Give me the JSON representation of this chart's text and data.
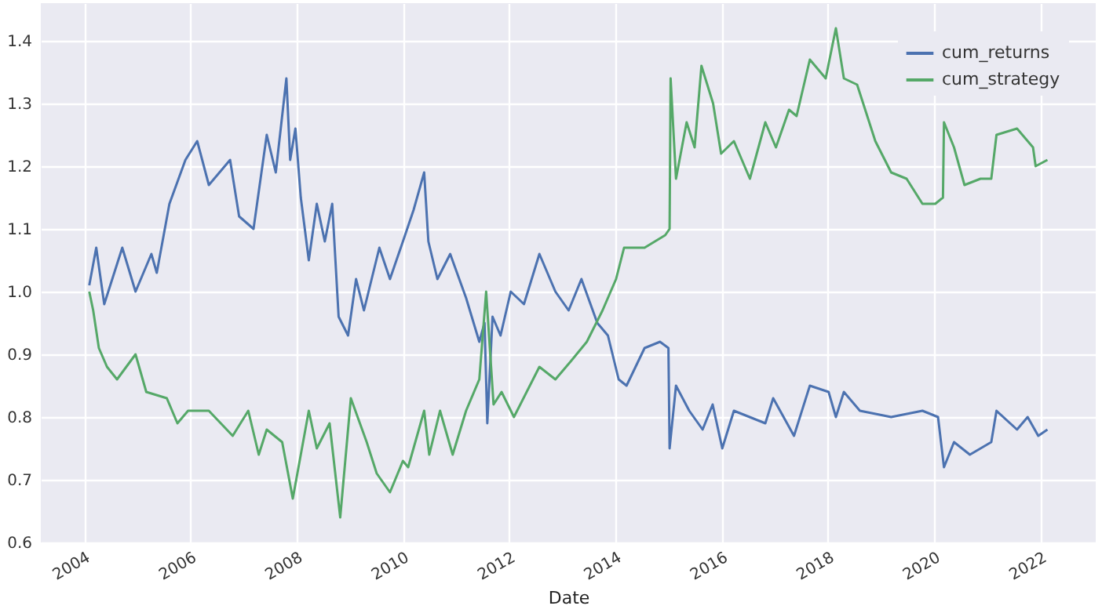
{
  "chart_data": {
    "type": "line",
    "xlabel": "Date",
    "xlim": [
      "2003-03-10",
      "2023-01-15"
    ],
    "xticks": [
      "2004",
      "2006",
      "2008",
      "2010",
      "2012",
      "2014",
      "2016",
      "2018",
      "2020",
      "2022"
    ],
    "ylim": [
      0.6,
      1.46
    ],
    "yticks": [
      0.6,
      0.7,
      0.8,
      0.9,
      {
        "value": 1.0,
        "label": "1.0"
      },
      1.1,
      1.2,
      1.3,
      1.4
    ],
    "grid": true,
    "legend": "top right",
    "marker": "none",
    "line_style": "solid",
    "series": [
      {
        "name": "cum_returns",
        "color": "#4c72b0",
        "x": [
          "2004-02-06",
          "2004-03-25",
          "2004-05-19",
          "2004-09-20",
          "2004-12-20",
          "2005-04-08",
          "2005-05-15",
          "2005-08-10",
          "2005-11-28",
          "2006-02-17",
          "2006-05-08",
          "2006-10-01",
          "2006-12-02",
          "2007-03-11",
          "2007-06-10",
          "2007-08-11",
          "2007-10-23",
          "2007-11-18",
          "2007-12-24",
          "2008-01-30",
          "2008-03-25",
          "2008-05-19",
          "2008-07-13",
          "2008-09-02",
          "2008-10-16",
          "2008-12-20",
          "2009-02-13",
          "2009-04-08",
          "2009-07-23",
          "2009-10-04",
          "2010-01-01",
          "2010-03-15",
          "2010-05-27",
          "2010-06-25",
          "2010-08-26",
          "2010-11-22",
          "2011-03-11",
          "2011-06-10",
          "2011-07-16",
          "2011-08-04",
          "2011-09-09",
          "2011-11-03",
          "2012-01-12",
          "2012-04-12",
          "2012-07-27",
          "2012-11-14",
          "2013-02-13",
          "2013-05-12",
          "2013-08-29",
          "2013-11-10",
          "2014-01-23",
          "2014-03-18",
          "2014-07-20",
          "2014-11-03",
          "2014-12-31",
          "2015-01-08",
          "2015-02-21",
          "2015-05-23",
          "2015-08-23",
          "2015-10-31",
          "2016-01-05",
          "2016-03-25",
          "2016-10-27",
          "2016-12-20",
          "2017-05-12",
          "2017-08-29",
          "2018-01-05",
          "2018-02-24",
          "2018-04-20",
          "2018-08-08",
          "2019-03-11",
          "2019-10-12",
          "2020-01-27",
          "2020-03-08",
          "2020-05-16",
          "2020-09-02",
          "2021-01-27",
          "2021-03-04",
          "2021-07-23",
          "2021-10-04",
          "2021-12-16",
          "2022-02-17"
        ],
        "values": [
          1.01,
          1.07,
          0.98,
          1.07,
          1.0,
          1.06,
          1.03,
          1.14,
          1.21,
          1.24,
          1.17,
          1.21,
          1.12,
          1.1,
          1.25,
          1.19,
          1.34,
          1.21,
          1.26,
          1.15,
          1.05,
          1.14,
          1.08,
          1.14,
          0.96,
          0.93,
          1.02,
          0.97,
          1.07,
          1.02,
          1.08,
          1.13,
          1.19,
          1.08,
          1.02,
          1.06,
          0.99,
          0.92,
          0.95,
          0.79,
          0.96,
          0.93,
          1.0,
          0.98,
          1.06,
          1.0,
          0.97,
          1.02,
          0.95,
          0.93,
          0.86,
          0.85,
          0.91,
          0.92,
          0.91,
          0.75,
          0.85,
          0.81,
          0.78,
          0.82,
          0.75,
          0.81,
          0.79,
          0.83,
          0.77,
          0.85,
          0.84,
          0.8,
          0.84,
          0.81,
          0.8,
          0.81,
          0.8,
          0.72,
          0.76,
          0.74,
          0.76,
          0.81,
          0.78,
          0.8,
          0.77,
          0.78
        ]
      },
      {
        "name": "cum_strategy",
        "color": "#55a868",
        "x": [
          "2004-02-06",
          "2004-03-04",
          "2004-04-12",
          "2004-06-07",
          "2004-08-15",
          "2004-12-20",
          "2005-03-04",
          "2005-07-23",
          "2005-10-04",
          "2005-12-16",
          "2006-05-08",
          "2006-10-19",
          "2007-02-03",
          "2007-04-16",
          "2007-06-10",
          "2007-09-24",
          "2007-12-06",
          "2008-01-30",
          "2008-03-25",
          "2008-05-19",
          "2008-08-15",
          "2008-10-27",
          "2009-01-08",
          "2009-04-27",
          "2009-07-05",
          "2009-10-04",
          "2010-01-01",
          "2010-02-06",
          "2010-05-27",
          "2010-07-01",
          "2010-09-13",
          "2010-12-09",
          "2011-03-11",
          "2011-06-10",
          "2011-07-27",
          "2011-09-16",
          "2011-11-10",
          "2012-02-03",
          "2012-07-27",
          "2012-11-14",
          "2013-03-04",
          "2013-06-18",
          "2013-10-04",
          "2014-01-05",
          "2014-03-01",
          "2014-07-20",
          "2014-12-09",
          "2015-01-08",
          "2015-01-15",
          "2015-02-21",
          "2015-05-05",
          "2015-06-29",
          "2015-08-15",
          "2015-11-03",
          "2015-12-28",
          "2016-03-25",
          "2016-07-13",
          "2016-10-27",
          "2017-01-08",
          "2017-04-08",
          "2017-05-30",
          "2017-08-29",
          "2017-12-16",
          "2018-02-24",
          "2018-04-20",
          "2018-07-20",
          "2018-11-22",
          "2019-03-11",
          "2019-06-25",
          "2019-10-12",
          "2020-01-08",
          "2020-03-01",
          "2020-03-08",
          "2020-05-16",
          "2020-07-27",
          "2020-11-14",
          "2021-01-27",
          "2021-03-04",
          "2021-07-23",
          "2021-11-10",
          "2021-11-28",
          "2022-02-17"
        ],
        "values": [
          1.0,
          0.97,
          0.91,
          0.88,
          0.86,
          0.9,
          0.84,
          0.83,
          0.79,
          0.81,
          0.81,
          0.77,
          0.81,
          0.74,
          0.78,
          0.76,
          0.67,
          0.74,
          0.81,
          0.75,
          0.79,
          0.64,
          0.83,
          0.76,
          0.71,
          0.68,
          0.73,
          0.72,
          0.81,
          0.74,
          0.81,
          0.74,
          0.81,
          0.86,
          1.0,
          0.82,
          0.84,
          0.8,
          0.88,
          0.86,
          0.89,
          0.92,
          0.97,
          1.02,
          1.07,
          1.07,
          1.09,
          1.1,
          1.34,
          1.18,
          1.27,
          1.23,
          1.36,
          1.3,
          1.22,
          1.24,
          1.18,
          1.27,
          1.23,
          1.29,
          1.28,
          1.37,
          1.34,
          1.42,
          1.34,
          1.33,
          1.24,
          1.19,
          1.18,
          1.14,
          1.14,
          1.15,
          1.27,
          1.23,
          1.17,
          1.18,
          1.18,
          1.25,
          1.26,
          1.23,
          1.2,
          1.21
        ]
      }
    ]
  }
}
